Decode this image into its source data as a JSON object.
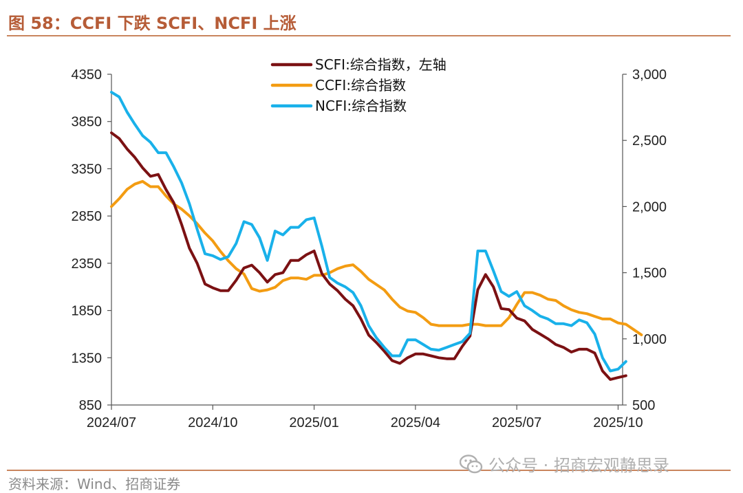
{
  "page": {
    "title": "图 58：CCFI 下跌  SCFI、NCFI 上涨",
    "source": "资料来源：Wind、招商证券",
    "watermark": "公众号 · 招商宏观静思录"
  },
  "chart_data": {
    "type": "line",
    "title": "CCFI 下跌  SCFI、NCFI 上涨",
    "x_ticks": [
      "2024/07",
      "2024/10",
      "2025/01",
      "2025/04",
      "2025/07",
      "2025/10"
    ],
    "x_range": [
      0,
      63
    ],
    "x_tick_positions": [
      0,
      13,
      26,
      39,
      52,
      65
    ],
    "left_axis": {
      "min": 850,
      "max": 4350,
      "ticks": [
        "4350",
        "3850",
        "3350",
        "2850",
        "2350",
        "1850",
        "1350",
        "850"
      ]
    },
    "right_axis": {
      "min": 500,
      "max": 3000,
      "ticks": [
        "3,000",
        "2,500",
        "2,000",
        "1,500",
        "1,000",
        "500"
      ]
    },
    "series": [
      {
        "name": "SCFI:综合指数，左轴",
        "axis": "left",
        "color": "#7b1113",
        "values": [
          3730,
          3670,
          3560,
          3470,
          3360,
          3270,
          3290,
          3130,
          2990,
          2760,
          2510,
          2350,
          2130,
          2090,
          2060,
          2060,
          2170,
          2300,
          2330,
          2250,
          2150,
          2230,
          2250,
          2380,
          2380,
          2440,
          2480,
          2240,
          2130,
          2060,
          1970,
          1900,
          1760,
          1590,
          1510,
          1420,
          1320,
          1290,
          1350,
          1390,
          1390,
          1370,
          1350,
          1340,
          1340,
          1470,
          1580,
          2070,
          2230,
          2100,
          1870,
          1860,
          1770,
          1740,
          1650,
          1600,
          1550,
          1490,
          1460,
          1410,
          1440,
          1440,
          1400,
          1210,
          1120,
          1140,
          1160
        ]
      },
      {
        "name": "CCFI:综合指数",
        "axis": "right",
        "color": "#f39c12",
        "values": [
          2000,
          2060,
          2130,
          2170,
          2190,
          2150,
          2150,
          2080,
          2020,
          1980,
          1930,
          1870,
          1800,
          1740,
          1660,
          1590,
          1530,
          1490,
          1380,
          1360,
          1370,
          1390,
          1440,
          1460,
          1460,
          1450,
          1480,
          1480,
          1500,
          1530,
          1550,
          1560,
          1510,
          1450,
          1410,
          1370,
          1300,
          1240,
          1210,
          1200,
          1160,
          1110,
          1100,
          1100,
          1100,
          1100,
          1110,
          1110,
          1100,
          1100,
          1100,
          1160,
          1260,
          1350,
          1350,
          1330,
          1300,
          1290,
          1250,
          1220,
          1200,
          1190,
          1170,
          1150,
          1150,
          1120,
          1110,
          1070,
          1030
        ]
      },
      {
        "name": "NCFI:综合指数",
        "axis": "left",
        "color": "#19b1ea",
        "values": [
          4160,
          4110,
          3950,
          3820,
          3700,
          3630,
          3520,
          3520,
          3370,
          3200,
          2980,
          2710,
          2450,
          2430,
          2390,
          2420,
          2560,
          2790,
          2760,
          2620,
          2380,
          2690,
          2650,
          2730,
          2730,
          2810,
          2830,
          2530,
          2200,
          2140,
          2100,
          2040,
          1900,
          1690,
          1560,
          1460,
          1370,
          1370,
          1540,
          1540,
          1490,
          1440,
          1430,
          1460,
          1490,
          1520,
          1610,
          2480,
          2480,
          2270,
          2050,
          2000,
          2050,
          1900,
          1850,
          1790,
          1760,
          1710,
          1710,
          1690,
          1750,
          1720,
          1600,
          1350,
          1210,
          1230,
          1310
        ]
      }
    ]
  }
}
